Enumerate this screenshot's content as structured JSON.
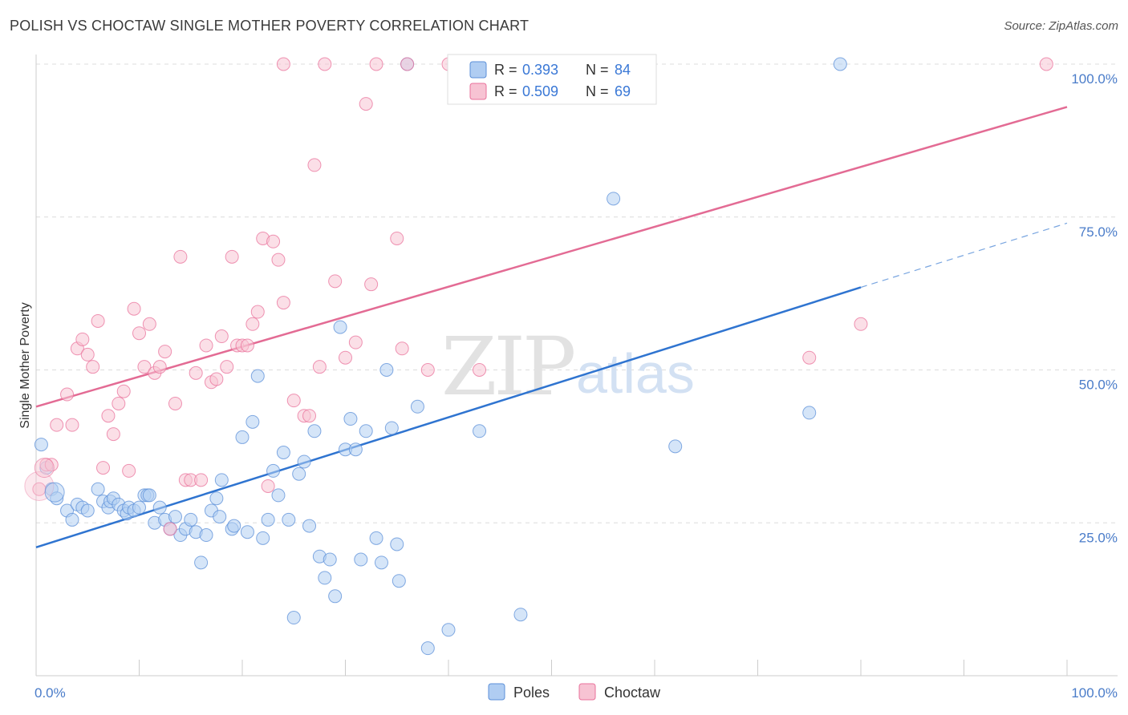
{
  "header": {
    "title": "POLISH VS CHOCTAW SINGLE MOTHER POVERTY CORRELATION CHART",
    "source": "Source: ZipAtlas.com"
  },
  "legend": {
    "rows": [
      {
        "r_label": "R =",
        "r_value": "0.393",
        "n_label": "N =",
        "n_value": "84",
        "color": "#8fb8ec"
      },
      {
        "r_label": "R =",
        "r_value": "0.509",
        "n_label": "N =",
        "n_value": "69",
        "color": "#f4a9c0"
      }
    ],
    "bottom": [
      {
        "name": "Poles",
        "color": "#8fb8ec"
      },
      {
        "name": "Choctaw",
        "color": "#f4a9c0"
      }
    ]
  },
  "watermark": {
    "zip": "ZIP",
    "atlas": "atlas"
  },
  "chart_data": {
    "type": "scatter",
    "title": "POLISH VS CHOCTAW SINGLE MOTHER POVERTY CORRELATION CHART",
    "xlabel": "",
    "ylabel": "Single Mother Poverty",
    "xlim": [
      0,
      100
    ],
    "ylim": [
      0,
      100
    ],
    "x_tick_labels": [
      "0.0%",
      "100.0%"
    ],
    "y_tick_labels": [
      "25.0%",
      "50.0%",
      "75.0%",
      "100.0%"
    ],
    "y_tick_values": [
      25,
      50,
      75,
      100
    ],
    "grid": true,
    "series": [
      {
        "name": "Poles",
        "color": "#5b8fd8",
        "fill": "#b3cff2",
        "R": 0.393,
        "N": 84,
        "trend": {
          "x0": 0,
          "y0": 21.0,
          "x1": 80,
          "y1": 63.5,
          "dash_to_x": 100,
          "dash_to_y": 74.0
        },
        "points": [
          [
            0.5,
            37.8
          ],
          [
            1,
            34
          ],
          [
            1.5,
            30.5
          ],
          [
            2,
            29
          ],
          [
            3,
            27
          ],
          [
            3.5,
            25.5
          ],
          [
            4,
            28
          ],
          [
            4.5,
            27.5
          ],
          [
            5,
            27
          ],
          [
            6,
            30.5
          ],
          [
            6.5,
            28.5
          ],
          [
            7,
            27.5
          ],
          [
            7.2,
            28.5
          ],
          [
            7.5,
            29
          ],
          [
            8,
            28
          ],
          [
            8.5,
            27
          ],
          [
            8.8,
            26.5
          ],
          [
            9,
            27.5
          ],
          [
            9.5,
            27
          ],
          [
            10,
            27.5
          ],
          [
            10.5,
            29.5
          ],
          [
            10.8,
            29.5
          ],
          [
            11,
            29.5
          ],
          [
            11.5,
            25
          ],
          [
            12,
            27.5
          ],
          [
            12.5,
            25.5
          ],
          [
            13,
            24
          ],
          [
            13.5,
            26
          ],
          [
            14,
            23
          ],
          [
            14.5,
            24
          ],
          [
            15,
            25.5
          ],
          [
            15.5,
            23.5
          ],
          [
            16,
            18.5
          ],
          [
            16.5,
            23
          ],
          [
            17,
            27
          ],
          [
            17.5,
            29
          ],
          [
            17.8,
            26
          ],
          [
            18,
            32
          ],
          [
            19,
            24
          ],
          [
            19.2,
            24.5
          ],
          [
            20,
            39
          ],
          [
            20.5,
            23.5
          ],
          [
            21,
            41.5
          ],
          [
            21.5,
            49
          ],
          [
            22,
            22.5
          ],
          [
            22.5,
            25.5
          ],
          [
            23,
            33.5
          ],
          [
            23.5,
            29.5
          ],
          [
            24,
            36.5
          ],
          [
            24.5,
            25.5
          ],
          [
            25,
            9.5
          ],
          [
            25.5,
            33
          ],
          [
            26,
            35
          ],
          [
            26.5,
            24.5
          ],
          [
            27,
            40
          ],
          [
            27.5,
            19.5
          ],
          [
            28,
            16
          ],
          [
            28.5,
            19
          ],
          [
            29,
            13
          ],
          [
            29.5,
            57
          ],
          [
            30,
            37
          ],
          [
            30.5,
            42
          ],
          [
            31,
            37
          ],
          [
            31.5,
            19
          ],
          [
            32,
            40
          ],
          [
            33,
            22.5
          ],
          [
            33.5,
            18.5
          ],
          [
            34,
            50
          ],
          [
            34.5,
            40.5
          ],
          [
            35,
            21.5
          ],
          [
            35.2,
            15.5
          ],
          [
            36,
            100
          ],
          [
            37,
            44
          ],
          [
            38,
            4.5
          ],
          [
            40,
            7.5
          ],
          [
            42,
            100
          ],
          [
            43,
            40
          ],
          [
            45,
            100
          ],
          [
            47,
            10
          ],
          [
            50,
            100
          ],
          [
            56,
            78
          ],
          [
            62,
            37.5
          ],
          [
            75,
            43
          ],
          [
            78,
            100
          ]
        ]
      },
      {
        "name": "Choctaw",
        "color": "#e9729b",
        "fill": "#f8c5d4",
        "R": 0.509,
        "N": 69,
        "trend": {
          "x0": 0,
          "y0": 44.0,
          "x1": 100,
          "y1": 93.0
        },
        "points": [
          [
            0.3,
            30.5
          ],
          [
            1,
            34.5
          ],
          [
            1.5,
            34.5
          ],
          [
            2,
            41
          ],
          [
            3,
            46
          ],
          [
            3.5,
            41
          ],
          [
            4,
            53.5
          ],
          [
            4.5,
            55
          ],
          [
            5,
            52.5
          ],
          [
            5.5,
            50.5
          ],
          [
            6,
            58
          ],
          [
            6.5,
            34
          ],
          [
            7,
            42.5
          ],
          [
            7.5,
            39.5
          ],
          [
            8,
            44.5
          ],
          [
            8.5,
            46.5
          ],
          [
            9,
            33.5
          ],
          [
            9.5,
            60
          ],
          [
            10,
            56
          ],
          [
            10.5,
            50.5
          ],
          [
            11,
            57.5
          ],
          [
            11.5,
            49.5
          ],
          [
            12,
            50.5
          ],
          [
            12.5,
            53
          ],
          [
            13,
            24
          ],
          [
            13.5,
            44.5
          ],
          [
            14,
            68.5
          ],
          [
            14.5,
            32
          ],
          [
            15,
            32
          ],
          [
            15.5,
            49.5
          ],
          [
            16,
            32
          ],
          [
            16.5,
            54
          ],
          [
            17,
            48
          ],
          [
            17.5,
            48.5
          ],
          [
            18,
            55.5
          ],
          [
            18.5,
            50.5
          ],
          [
            19,
            68.5
          ],
          [
            19.5,
            54
          ],
          [
            20,
            54
          ],
          [
            20.5,
            54
          ],
          [
            21,
            57.5
          ],
          [
            21.5,
            59.5
          ],
          [
            22,
            71.5
          ],
          [
            22.5,
            31
          ],
          [
            23,
            71
          ],
          [
            23.5,
            68
          ],
          [
            24,
            61
          ],
          [
            24,
            100
          ],
          [
            25,
            45
          ],
          [
            26,
            42.5
          ],
          [
            26.5,
            42.5
          ],
          [
            27,
            83.5
          ],
          [
            27.5,
            50.5
          ],
          [
            28,
            100
          ],
          [
            29,
            64.5
          ],
          [
            30,
            52
          ],
          [
            31,
            54.5
          ],
          [
            32,
            93.5
          ],
          [
            32.5,
            64
          ],
          [
            33,
            100
          ],
          [
            35,
            71.5
          ],
          [
            35.5,
            53.5
          ],
          [
            38,
            50
          ],
          [
            43,
            50
          ],
          [
            75,
            52
          ],
          [
            80,
            57.5
          ],
          [
            98,
            100
          ],
          [
            36,
            100
          ],
          [
            40,
            100
          ]
        ]
      }
    ]
  }
}
